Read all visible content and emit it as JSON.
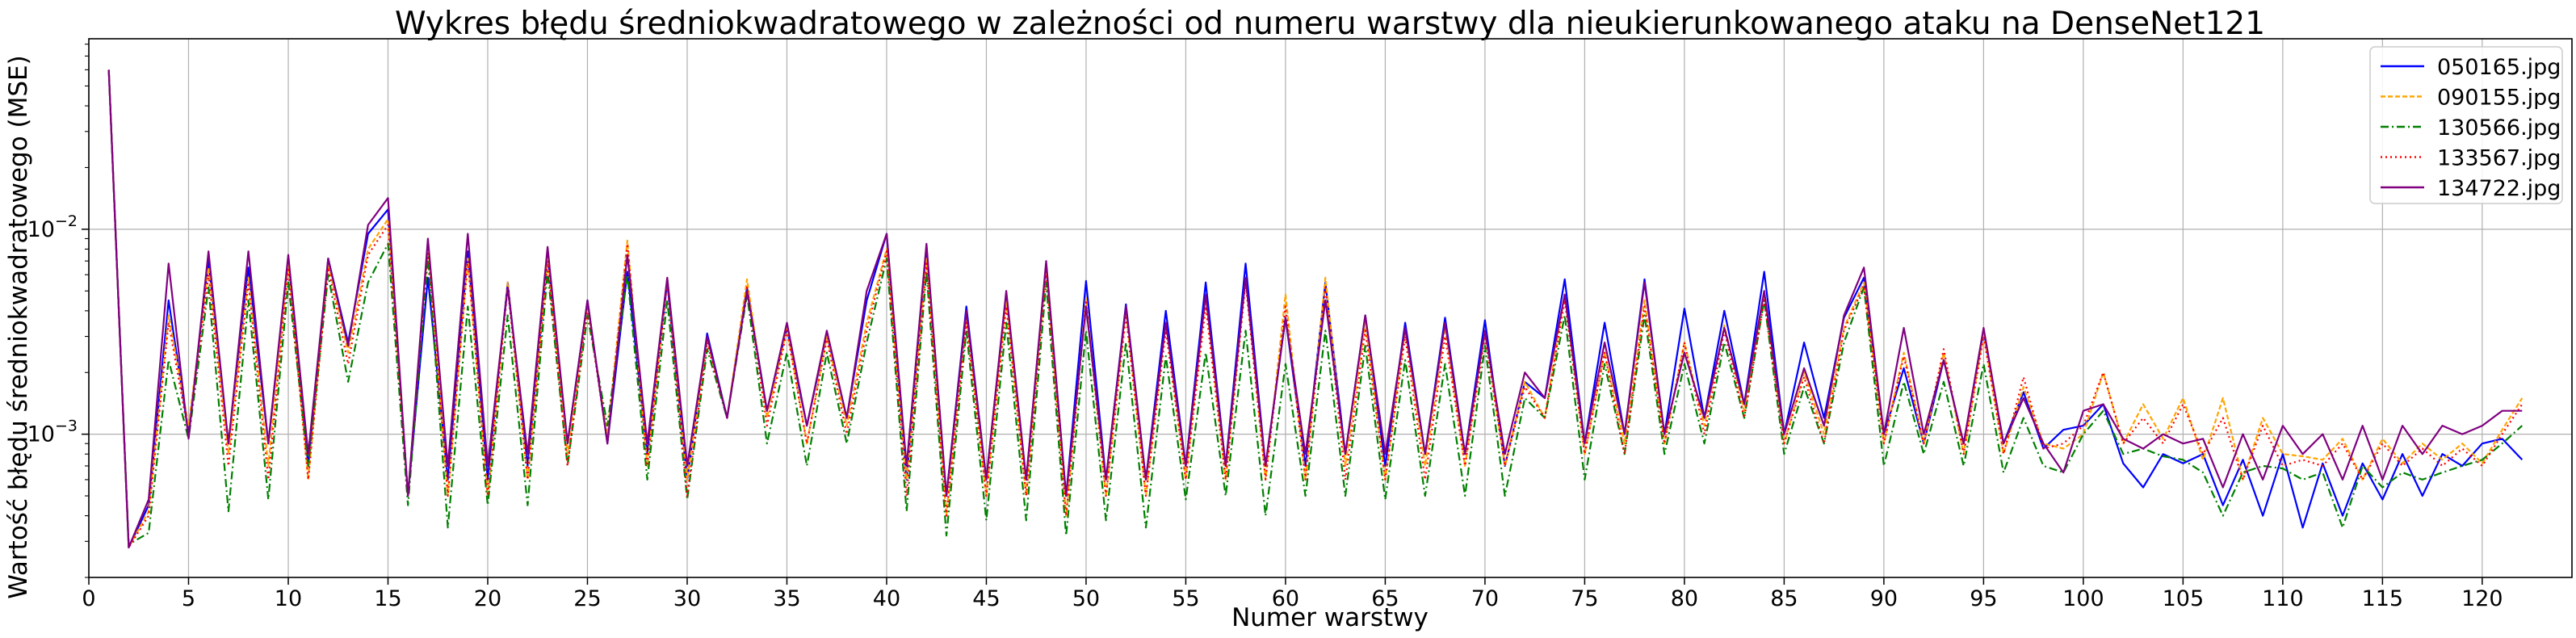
{
  "chart_data": {
    "type": "line",
    "title": "Wykres błędu średniokwadratowego w zależności od numeru warstwy dla nieukierunkowanego ataku na DenseNet121",
    "xlabel": "Numer warstwy",
    "ylabel": "Wartość błędu średniokwadratowego (MSE)",
    "yscale": "log",
    "xlim": [
      0,
      124.5
    ],
    "ylim": [
      0.0002,
      0.085
    ],
    "grid": true,
    "legend_position": "top-right",
    "x_ticks": [
      "0",
      "5",
      "10",
      "15",
      "20",
      "25",
      "30",
      "35",
      "40",
      "45",
      "50",
      "55",
      "60",
      "65",
      "70",
      "75",
      "80",
      "85",
      "90",
      "95",
      "100",
      "105",
      "110",
      "115",
      "120"
    ],
    "y_ticks": [
      {
        "value": 0.001,
        "base": "10",
        "exp": "−3"
      },
      {
        "value": 0.01,
        "base": "10",
        "exp": "−2"
      }
    ],
    "x": [
      1,
      2,
      3,
      4,
      5,
      6,
      7,
      8,
      9,
      10,
      11,
      12,
      13,
      14,
      15,
      16,
      17,
      18,
      19,
      20,
      21,
      22,
      23,
      24,
      25,
      26,
      27,
      28,
      29,
      30,
      31,
      32,
      33,
      34,
      35,
      36,
      37,
      38,
      39,
      40,
      41,
      42,
      43,
      44,
      45,
      46,
      47,
      48,
      49,
      50,
      51,
      52,
      53,
      54,
      55,
      56,
      57,
      58,
      59,
      60,
      61,
      62,
      63,
      64,
      65,
      66,
      67,
      68,
      69,
      70,
      71,
      72,
      73,
      74,
      75,
      76,
      77,
      78,
      79,
      80,
      81,
      82,
      83,
      84,
      85,
      86,
      87,
      88,
      89,
      90,
      91,
      92,
      93,
      94,
      95,
      96,
      97,
      98,
      99,
      100,
      101,
      102,
      103,
      104,
      105,
      106,
      107,
      108,
      109,
      110,
      111,
      112,
      113,
      114,
      115,
      116,
      117,
      118,
      119,
      120,
      121,
      122
    ],
    "series": [
      {
        "name": "050165.jpg",
        "color": "#0000ff",
        "dash": "solid",
        "values": [
          0.06,
          0.00028,
          0.00045,
          0.0045,
          0.001,
          0.007,
          0.0009,
          0.0065,
          0.0009,
          0.0072,
          0.0007,
          0.0072,
          0.0028,
          0.0095,
          0.0125,
          0.0005,
          0.0058,
          0.0006,
          0.0078,
          0.0006,
          0.0055,
          0.0007,
          0.0075,
          0.0009,
          0.0045,
          0.0009,
          0.0062,
          0.0008,
          0.0055,
          0.0006,
          0.0031,
          0.0012,
          0.0052,
          0.0013,
          0.0033,
          0.0011,
          0.0031,
          0.0012,
          0.0045,
          0.0095,
          0.0006,
          0.0082,
          0.0005,
          0.0042,
          0.0006,
          0.0048,
          0.0006,
          0.0067,
          0.0005,
          0.0056,
          0.0006,
          0.0043,
          0.0006,
          0.004,
          0.0007,
          0.0055,
          0.0007,
          0.0068,
          0.0007,
          0.0037,
          0.0007,
          0.0055,
          0.0008,
          0.0038,
          0.0007,
          0.0035,
          0.0008,
          0.0037,
          0.0008,
          0.0036,
          0.0007,
          0.0018,
          0.0015,
          0.0057,
          0.0009,
          0.0035,
          0.001,
          0.0057,
          0.001,
          0.0041,
          0.0012,
          0.004,
          0.0014,
          0.0062,
          0.001,
          0.0028,
          0.0012,
          0.0037,
          0.0058,
          0.001,
          0.0021,
          0.0009,
          0.0023,
          0.0009,
          0.0032,
          0.0009,
          0.0016,
          0.00085,
          0.00105,
          0.0011,
          0.0014,
          0.00072,
          0.00055,
          0.0008,
          0.00072,
          0.0008,
          0.00045,
          0.00075,
          0.0004,
          0.0008,
          0.00035,
          0.00072,
          0.0004,
          0.00072,
          0.00048,
          0.0008,
          0.0005,
          0.0008,
          0.0007,
          0.0009,
          0.00095,
          0.00075
        ]
      },
      {
        "name": "090155.jpg",
        "color": "#ffa500",
        "dash": "6 3",
        "values": [
          0.06,
          0.00028,
          0.00042,
          0.0038,
          0.0011,
          0.0065,
          0.0008,
          0.0058,
          0.0007,
          0.0068,
          0.0006,
          0.0068,
          0.0025,
          0.008,
          0.0112,
          0.0005,
          0.0085,
          0.0005,
          0.0072,
          0.0005,
          0.0055,
          0.0006,
          0.0072,
          0.0008,
          0.0042,
          0.001,
          0.0088,
          0.0007,
          0.0058,
          0.0006,
          0.0029,
          0.0012,
          0.0057,
          0.0012,
          0.0033,
          0.0009,
          0.003,
          0.0011,
          0.0035,
          0.008,
          0.0006,
          0.0072,
          0.0004,
          0.0038,
          0.0005,
          0.0045,
          0.0005,
          0.0065,
          0.0004,
          0.0046,
          0.0005,
          0.004,
          0.0005,
          0.0035,
          0.0006,
          0.0047,
          0.0006,
          0.0058,
          0.0006,
          0.0048,
          0.0006,
          0.0058,
          0.0007,
          0.0035,
          0.0006,
          0.0032,
          0.0007,
          0.0033,
          0.0007,
          0.0032,
          0.0007,
          0.0018,
          0.0012,
          0.0048,
          0.0008,
          0.0025,
          0.0009,
          0.0045,
          0.0009,
          0.0028,
          0.0011,
          0.0034,
          0.0013,
          0.0048,
          0.0009,
          0.002,
          0.001,
          0.0033,
          0.0055,
          0.0009,
          0.0025,
          0.0009,
          0.0025,
          0.0008,
          0.0031,
          0.0008,
          0.0017,
          0.0009,
          0.00085,
          0.001,
          0.002,
          0.0009,
          0.0014,
          0.00095,
          0.0015,
          0.00075,
          0.0015,
          0.0006,
          0.0012,
          0.0008,
          0.00078,
          0.00075,
          0.00095,
          0.0006,
          0.00095,
          0.00072,
          0.0009,
          0.00075,
          0.0009,
          0.00072,
          0.00105,
          0.0015
        ]
      },
      {
        "name": "130566.jpg",
        "color": "#008000",
        "dash": "10 4 2 4",
        "values": [
          0.06,
          0.00029,
          0.00033,
          0.0023,
          0.00095,
          0.0052,
          0.00042,
          0.0045,
          0.00048,
          0.0055,
          0.0007,
          0.006,
          0.0018,
          0.0055,
          0.0085,
          0.00045,
          0.0073,
          0.00035,
          0.0042,
          0.00045,
          0.0038,
          0.00045,
          0.0062,
          0.0007,
          0.0038,
          0.0011,
          0.006,
          0.0006,
          0.0045,
          0.00048,
          0.0026,
          0.0012,
          0.0048,
          0.0009,
          0.0025,
          0.0007,
          0.0025,
          0.0009,
          0.0028,
          0.0072,
          0.00042,
          0.0062,
          0.00032,
          0.0032,
          0.00038,
          0.0035,
          0.00038,
          0.0055,
          0.00032,
          0.0032,
          0.00038,
          0.0028,
          0.00035,
          0.0024,
          0.00048,
          0.0025,
          0.0005,
          0.0032,
          0.0004,
          0.0022,
          0.0005,
          0.0032,
          0.0005,
          0.0027,
          0.00048,
          0.0023,
          0.0005,
          0.0022,
          0.0005,
          0.0027,
          0.0005,
          0.0015,
          0.0012,
          0.0038,
          0.0006,
          0.0022,
          0.0008,
          0.0038,
          0.0008,
          0.0022,
          0.0009,
          0.0028,
          0.0012,
          0.0045,
          0.0008,
          0.0017,
          0.0009,
          0.0028,
          0.0052,
          0.0007,
          0.0018,
          0.0008,
          0.0018,
          0.0007,
          0.0022,
          0.00065,
          0.0012,
          0.0007,
          0.00065,
          0.001,
          0.0013,
          0.0008,
          0.00085,
          0.00078,
          0.00075,
          0.00065,
          0.0004,
          0.00065,
          0.0007,
          0.00068,
          0.0006,
          0.00065,
          0.00035,
          0.0007,
          0.00055,
          0.00065,
          0.0006,
          0.00065,
          0.0007,
          0.00075,
          0.0009,
          0.0011
        ]
      },
      {
        "name": "133567.jpg",
        "color": "#ff0000",
        "dash": "2 4",
        "values": [
          0.06,
          0.00028,
          0.0004,
          0.0035,
          0.001,
          0.006,
          0.0007,
          0.0055,
          0.0006,
          0.0065,
          0.0006,
          0.0065,
          0.0022,
          0.0075,
          0.0105,
          0.0005,
          0.0082,
          0.0005,
          0.007,
          0.0005,
          0.0052,
          0.0006,
          0.007,
          0.0007,
          0.0042,
          0.0009,
          0.0085,
          0.0007,
          0.0055,
          0.0005,
          0.0028,
          0.0012,
          0.0052,
          0.0011,
          0.0032,
          0.0009,
          0.0029,
          0.001,
          0.0032,
          0.0078,
          0.0005,
          0.0068,
          0.0004,
          0.0035,
          0.0005,
          0.0042,
          0.0005,
          0.0062,
          0.0004,
          0.0044,
          0.0005,
          0.0038,
          0.0005,
          0.0032,
          0.0006,
          0.0042,
          0.0006,
          0.0055,
          0.0006,
          0.0042,
          0.0006,
          0.0052,
          0.0006,
          0.0032,
          0.0006,
          0.003,
          0.0006,
          0.003,
          0.0007,
          0.003,
          0.0007,
          0.0017,
          0.0012,
          0.0045,
          0.0008,
          0.0025,
          0.0008,
          0.0042,
          0.0009,
          0.0028,
          0.001,
          0.0032,
          0.0012,
          0.0045,
          0.0009,
          0.0019,
          0.0009,
          0.0032,
          0.0053,
          0.0009,
          0.0024,
          0.0009,
          0.0026,
          0.0008,
          0.003,
          0.0008,
          0.0019,
          0.00085,
          0.0009,
          0.0011,
          0.002,
          0.0009,
          0.0012,
          0.0009,
          0.0014,
          0.0008,
          0.0012,
          0.0006,
          0.0011,
          0.0007,
          0.00075,
          0.0007,
          0.0009,
          0.0006,
          0.0009,
          0.0007,
          0.00085,
          0.0007,
          0.00085,
          0.0007,
          0.001,
          0.0014
        ]
      },
      {
        "name": "134722.jpg",
        "color": "#800080",
        "dash": "solid",
        "values": [
          0.06,
          0.00028,
          0.00048,
          0.0068,
          0.00095,
          0.0078,
          0.0009,
          0.0078,
          0.0009,
          0.0075,
          0.0008,
          0.0072,
          0.0027,
          0.0105,
          0.0142,
          0.0005,
          0.009,
          0.0007,
          0.0095,
          0.0007,
          0.0052,
          0.0008,
          0.0082,
          0.0009,
          0.0045,
          0.0009,
          0.0075,
          0.0009,
          0.0058,
          0.0007,
          0.003,
          0.0012,
          0.005,
          0.0013,
          0.0035,
          0.0011,
          0.0032,
          0.0012,
          0.005,
          0.0095,
          0.0007,
          0.0085,
          0.0005,
          0.004,
          0.0006,
          0.005,
          0.0006,
          0.007,
          0.0005,
          0.0042,
          0.0006,
          0.0042,
          0.0006,
          0.0035,
          0.0007,
          0.0048,
          0.0007,
          0.0058,
          0.0007,
          0.0037,
          0.0008,
          0.0045,
          0.0008,
          0.0038,
          0.0008,
          0.0033,
          0.0008,
          0.0035,
          0.0008,
          0.0032,
          0.0008,
          0.002,
          0.0015,
          0.0048,
          0.0009,
          0.0028,
          0.001,
          0.0055,
          0.001,
          0.0025,
          0.0012,
          0.0033,
          0.0014,
          0.005,
          0.001,
          0.0021,
          0.0011,
          0.0038,
          0.0065,
          0.001,
          0.0033,
          0.001,
          0.0023,
          0.0009,
          0.0033,
          0.0009,
          0.0015,
          0.0009,
          0.00065,
          0.0013,
          0.0014,
          0.00095,
          0.00085,
          0.001,
          0.0009,
          0.00095,
          0.00055,
          0.001,
          0.0006,
          0.0011,
          0.0008,
          0.001,
          0.0006,
          0.0011,
          0.0006,
          0.0011,
          0.0008,
          0.0011,
          0.001,
          0.0011,
          0.0013,
          0.0013
        ]
      }
    ]
  }
}
